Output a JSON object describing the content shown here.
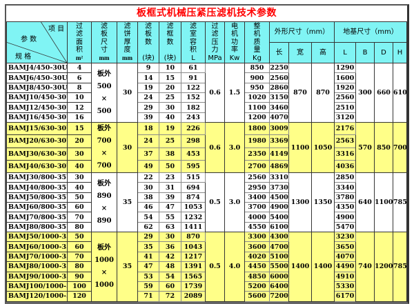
{
  "title": "板框式机械压紧压滤机技术参数",
  "header": {
    "diag_top": "项 目",
    "diag_mid": "参 数",
    "diag_bot": "规 格",
    "area": "过\n滤\n面\n积",
    "area_unit": "m²",
    "plate_size": "滤\n板\n尺\n寸",
    "plate_size_unit": "mm",
    "cake": "滤\n饼\n厚\n度",
    "cake_unit": "mm",
    "plates": "滤\n板\n数\n\n(块)",
    "frames": "滤\n框\n数\n\n(块)",
    "volume": "滤\n室\n容\n积",
    "volume_unit": "L",
    "pressure": "过\n滤\n压\n力",
    "pressure_unit": "MPa",
    "power": "电\n机\n功\n率",
    "power_unit": "Kw",
    "mass": "整\n机\n质\n量",
    "mass_unit": "Kg",
    "outer": "外形尺寸（mm）",
    "outer_sub": [
      "长",
      "宽",
      "高"
    ],
    "base": "地基尺寸（mm）",
    "base_sub": [
      "L",
      "B",
      "D",
      "H"
    ]
  },
  "colors": {
    "header": "#80f4f4",
    "highlight": "#ffff88",
    "title": "#ff0000"
  },
  "groups": [
    {
      "highlight": false,
      "plate_size": "板外\n500\n×\n500",
      "cake": "30",
      "pressure": "0.6",
      "power": "1.5",
      "width": "870",
      "height": "870",
      "B": "300",
      "D": "660",
      "H": "610",
      "rows": [
        [
          "BAMJ4/450-30U",
          "4",
          "9",
          "10",
          "61",
          "850",
          "2250",
          "1290"
        ],
        [
          "BAMJ6/450-30U",
          "6",
          "14",
          "15",
          "91",
          "900",
          "2560",
          "1600"
        ],
        [
          "BAMJ8/450-30U",
          "8",
          "19",
          "20",
          "122",
          "950",
          "2860",
          "1920"
        ],
        [
          "BAMJ10/450-30U",
          "10",
          "24",
          "25",
          "152",
          "1020",
          "3150",
          "2560"
        ],
        [
          "BAMJ12/450-30U",
          "12",
          "29",
          "30",
          "182",
          "1100",
          "3460",
          "2510"
        ],
        [
          "BAMJ16/450-30U",
          "16",
          "39",
          "40",
          "243",
          "1200",
          "4070",
          "3120"
        ]
      ]
    },
    {
      "highlight": true,
      "plate_size": "板外\n700\n×\n700",
      "cake": "30",
      "pressure": "0.6",
      "power": "3.0",
      "width": "1100",
      "height": "1050",
      "B": "570",
      "D": "850",
      "H": "700",
      "rows": [
        [
          "BAMJ15/630-30U",
          "15",
          "18",
          "19",
          "226",
          "1800",
          "3009",
          "2176"
        ],
        [
          "BAMJ20/630-30U",
          "20",
          "24",
          "25",
          "298",
          "1980",
          "3369",
          "2563"
        ],
        [
          "BAMJ30/630-30U",
          "30",
          "37",
          "38",
          "453",
          "2350",
          "4149",
          "3316"
        ],
        [
          "BAMJ40/630-30U",
          "40",
          "49",
          "50",
          "595",
          "2700",
          "4869",
          "4036"
        ]
      ]
    },
    {
      "highlight": false,
      "plate_size": "板外\n890\n×\n890",
      "cake": "35",
      "pressure": "0.5",
      "power": "3.0",
      "width": "1300",
      "height": "1350",
      "B": "640",
      "D": "1100",
      "H": "785",
      "rows": [
        [
          "BAMJ30/800-35U",
          "30",
          "22",
          "23",
          "515",
          "2560",
          "3310",
          "2850"
        ],
        [
          "BAMJ40/800-35U",
          "40",
          "30",
          "31",
          "694",
          "2950",
          "3730",
          "3340"
        ],
        [
          "BAMJ50/800-35U",
          "50",
          "38",
          "39",
          "874",
          "3400",
          "4500",
          "3780"
        ],
        [
          "BAMJ60/800-35U",
          "60",
          "46",
          "47",
          "1053",
          "3700",
          "4900",
          "4350"
        ],
        [
          "BAMJ70/800-35U",
          "70",
          "54",
          "55",
          "1232",
          "4000",
          "5400",
          "4900"
        ],
        [
          "BAMJ80/800-35U",
          "80",
          "62",
          "63",
          "1411",
          "4550",
          "6100",
          "5470"
        ]
      ]
    },
    {
      "highlight": true,
      "plate_size": "板外\n1000\n×\n1000",
      "cake": "35",
      "pressure": "0.5",
      "power": "4.0",
      "width": "1400",
      "height": "1400",
      "B": "740",
      "D": "1200",
      "H": "785",
      "rows": [
        [
          "BAMJ50/1000-35U",
          "50",
          "29",
          "30",
          "870",
          "3300",
          "4300",
          "3230"
        ],
        [
          "BAMJ60/1000-35U",
          "60",
          "35",
          "36",
          "1043",
          "3600",
          "4700",
          "3650"
        ],
        [
          "BAMJ70/1000-35U",
          "70",
          "41",
          "42",
          "1217",
          "4020",
          "5100",
          "4070"
        ],
        [
          "BAMJ80/1000-35U",
          "80",
          "47",
          "48",
          "1391",
          "4450",
          "5500",
          "4490"
        ],
        [
          "BAMJ90/1000-35U",
          "90",
          "53",
          "54",
          "1565",
          "4850",
          "6000",
          "4910"
        ],
        [
          "BAMJ100/1000-35U",
          "100",
          "59",
          "60",
          "1739",
          "5200",
          "6400",
          "5330"
        ],
        [
          "BAMJ120/1000-35U",
          "120",
          "71",
          "72",
          "2089",
          "5600",
          "7200",
          "6170"
        ]
      ]
    }
  ]
}
